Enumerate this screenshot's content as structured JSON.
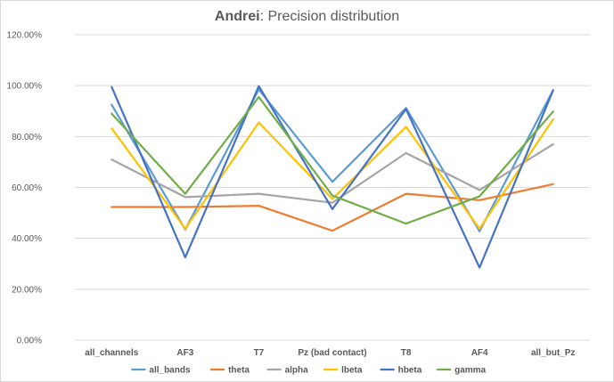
{
  "chart_data": {
    "type": "line",
    "title_bold": "Andrei",
    "title_rest": ": Precision distribution",
    "categories": [
      "all_channels",
      "AF3",
      "T7",
      "Pz (bad contact)",
      "T8",
      "AF4",
      "all_but_Pz"
    ],
    "ylim": [
      0,
      120
    ],
    "yticks": [
      0,
      20,
      40,
      60,
      80,
      100,
      120
    ],
    "ytick_labels": [
      "0.00%",
      "20.00%",
      "40.00%",
      "60.00%",
      "80.00%",
      "100.00%",
      "120.00%"
    ],
    "grid": true,
    "legend_position": "bottom",
    "series": [
      {
        "name": "all_bands",
        "color": "#5b9bd5",
        "values": [
          92.5,
          43.5,
          98.5,
          62.2,
          91.2,
          42.8,
          98.2
        ]
      },
      {
        "name": "theta",
        "color": "#ed7d31",
        "values": [
          52.3,
          52.3,
          52.8,
          43.0,
          57.5,
          55.0,
          61.3
        ]
      },
      {
        "name": "alpha",
        "color": "#a5a5a5",
        "values": [
          71.0,
          56.2,
          57.5,
          54.0,
          73.5,
          59.0,
          77.0
        ]
      },
      {
        "name": "lbeta",
        "color": "#ffc000",
        "values": [
          83.2,
          43.8,
          85.5,
          55.5,
          83.8,
          43.8,
          86.8
        ]
      },
      {
        "name": "hbeta",
        "color": "#4472c4",
        "values": [
          99.5,
          32.5,
          99.8,
          51.5,
          90.8,
          28.5,
          98.2
        ]
      },
      {
        "name": "gamma",
        "color": "#70ad47",
        "values": [
          89.0,
          57.5,
          95.5,
          56.8,
          45.8,
          56.5,
          89.8
        ]
      }
    ]
  }
}
